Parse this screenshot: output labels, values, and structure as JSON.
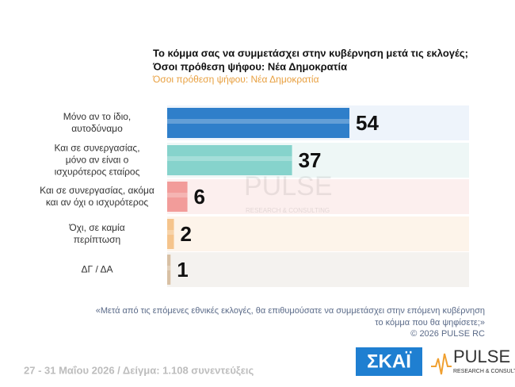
{
  "chart_data": {
    "type": "bar",
    "title": "Το κόμμα σας να συμμετάσχει στην κυβέρνηση μετά τις εκλογές;",
    "title_line2": "Όσοι πρόθεση ψήφου: Νέα Δημοκρατία",
    "subtitle": "Όσοι πρόθεση ψήφου: Νέα Δημοκρατία",
    "categories": [
      "Μόνο αν το ίδιο,\nαυτοδύναμο",
      "Και σε συνεργασίας,\nμόνο αν είναι ο\nισχυρότερος εταίρος",
      "Και σε συνεργασίας, ακόμα\nκαι αν όχι ο ισχυρότερος",
      "Όχι, σε καμία\nπερίπτωση",
      "ΔΓ / ΔΑ"
    ],
    "values": [
      54,
      37,
      6,
      2,
      1
    ],
    "colors": [
      "#2f7fca",
      "#86d3cc",
      "#f29c9a",
      "#f5c48c",
      "#d8c0a4"
    ],
    "band_colors": [
      "#eef4fb",
      "#eef7f6",
      "#fcefee",
      "#fdf4ea",
      "#f4f2ef"
    ],
    "question": [
      "«Μετά από τις επόμενες εθνικές εκλογές, θα επιθυμούσατε να συμμετάσχει στην επόμενη κυβέρνηση",
      "το κόμμα που θα ψηφίσετε;»"
    ],
    "copyright": "©  2026  PULSE RC",
    "footer": "27 - 31 Μαΐου 2026  /  Δείγμα:  1.108 συνεντεύξεις",
    "logo_skai": "ΣΚΑΪ",
    "logo_pulse": "PULSE",
    "logo_pulse_sub": "RESEARCH & CONSULTING"
  }
}
